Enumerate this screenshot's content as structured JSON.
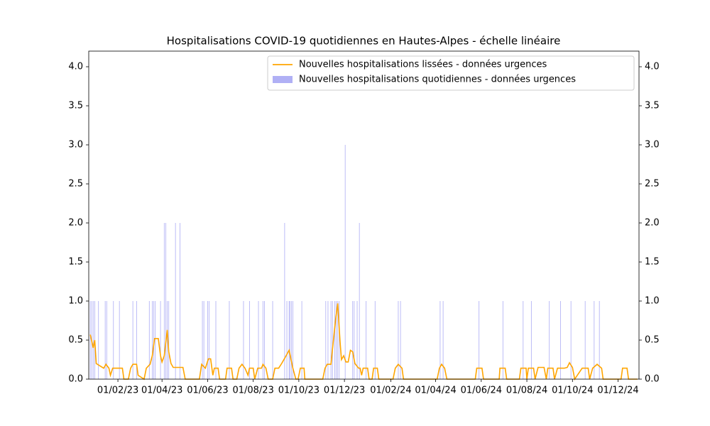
{
  "chart_data": {
    "type": "bar",
    "title": "Hospitalisations COVID-19 quotidiennes en Hautes-Alpes - échelle linéaire",
    "xlim": [
      "2022-12-24",
      "2024-12-29"
    ],
    "xticks": [
      {
        "value": "2023-02-01",
        "label": "01/02/23"
      },
      {
        "value": "2023-04-01",
        "label": "01/04/23"
      },
      {
        "value": "2023-06-01",
        "label": "01/06/23"
      },
      {
        "value": "2023-08-01",
        "label": "01/08/23"
      },
      {
        "value": "2023-10-01",
        "label": "01/10/23"
      },
      {
        "value": "2023-12-01",
        "label": "01/12/23"
      },
      {
        "value": "2024-02-01",
        "label": "01/02/24"
      },
      {
        "value": "2024-04-01",
        "label": "01/04/24"
      },
      {
        "value": "2024-06-01",
        "label": "01/06/24"
      },
      {
        "value": "2024-08-01",
        "label": "01/08/24"
      },
      {
        "value": "2024-10-01",
        "label": "01/10/24"
      },
      {
        "value": "2024-12-01",
        "label": "01/12/24"
      }
    ],
    "ylim": [
      0,
      4.2
    ],
    "yticks": [
      {
        "value": 0,
        "label": "0.0"
      },
      0.5,
      {
        "value": 1,
        "label": "1.0"
      },
      1.5,
      {
        "value": 2,
        "label": "2.0"
      },
      2.5,
      {
        "value": 3,
        "label": "3.0"
      },
      3.5,
      {
        "value": 4,
        "label": "4.0"
      }
    ],
    "y2lim": [
      0,
      4.2
    ],
    "y2ticks": [
      {
        "value": 0,
        "label": "0.0"
      },
      0.5,
      {
        "value": 1,
        "label": "1.0"
      },
      1.5,
      {
        "value": 2,
        "label": "2.0"
      },
      2.5,
      {
        "value": 3,
        "label": "3.0"
      },
      3.5,
      {
        "value": 4,
        "label": "4.0"
      }
    ],
    "legend": "upper right",
    "series": [
      {
        "name": "Nouvelles hospitalisations lissées - données urgences",
        "type": "line",
        "color": "#ffa500",
        "x": [
          "2022-12-26",
          "2022-12-30",
          "2023-01-01",
          "2023-01-03",
          "2023-01-13",
          "2023-01-16",
          "2023-01-20",
          "2023-01-22",
          "2023-01-25",
          "2023-02-07",
          "2023-02-09",
          "2023-02-15",
          "2023-02-18",
          "2023-02-21",
          "2023-02-26",
          "2023-02-28",
          "2023-03-08",
          "2023-03-11",
          "2023-03-16",
          "2023-03-19",
          "2023-03-22",
          "2023-03-27",
          "2023-03-30",
          "2023-04-01",
          "2023-04-04",
          "2023-04-08",
          "2023-04-10",
          "2023-04-13",
          "2023-04-16",
          "2023-04-29",
          "2023-05-02",
          "2023-05-21",
          "2023-05-24",
          "2023-05-29",
          "2023-06-02",
          "2023-06-05",
          "2023-06-08",
          "2023-06-10",
          "2023-06-15",
          "2023-06-17",
          "2023-06-25",
          "2023-06-27",
          "2023-07-03",
          "2023-07-05",
          "2023-07-10",
          "2023-07-13",
          "2023-07-17",
          "2023-07-21",
          "2023-07-25",
          "2023-07-27",
          "2023-08-01",
          "2023-08-03",
          "2023-08-07",
          "2023-08-12",
          "2023-08-14",
          "2023-08-18",
          "2023-08-21",
          "2023-08-27",
          "2023-08-30",
          "2023-09-04",
          "2023-09-08",
          "2023-09-14",
          "2023-09-18",
          "2023-09-20",
          "2023-09-23",
          "2023-09-27",
          "2023-09-30",
          "2023-10-03",
          "2023-10-08",
          "2023-10-09",
          "2023-11-02",
          "2023-11-05",
          "2023-11-08",
          "2023-11-13",
          "2023-11-15",
          "2023-11-19",
          "2023-11-22",
          "2023-11-25",
          "2023-11-27",
          "2023-11-30",
          "2023-12-03",
          "2023-12-06",
          "2023-12-09",
          "2023-12-12",
          "2023-12-15",
          "2023-12-20",
          "2023-12-22",
          "2023-12-24",
          "2023-12-26",
          "2024-01-01",
          "2024-01-03",
          "2024-01-07",
          "2024-01-09",
          "2024-01-14",
          "2024-01-16",
          "2024-02-04",
          "2024-02-07",
          "2024-02-11",
          "2024-02-16",
          "2024-02-18",
          "2024-04-03",
          "2024-04-06",
          "2024-04-09",
          "2024-04-13",
          "2024-04-16",
          "2024-05-24",
          "2024-05-26",
          "2024-06-02",
          "2024-06-04",
          "2024-06-25",
          "2024-06-26",
          "2024-07-03",
          "2024-07-05",
          "2024-07-22",
          "2024-07-24",
          "2024-07-31",
          "2024-08-01",
          "2024-08-03",
          "2024-08-10",
          "2024-08-12",
          "2024-08-16",
          "2024-08-24",
          "2024-08-27",
          "2024-08-29",
          "2024-09-05",
          "2024-09-07",
          "2024-09-11",
          "2024-09-20",
          "2024-09-24",
          "2024-09-27",
          "2024-10-01",
          "2024-10-04",
          "2024-10-14",
          "2024-10-22",
          "2024-10-24",
          "2024-10-28",
          "2024-11-03",
          "2024-11-09",
          "2024-11-11",
          "2024-12-05",
          "2024-12-07",
          "2024-12-13",
          "2024-12-15",
          "2024-12-27"
        ],
        "values": [
          0.57,
          0.4,
          0.5,
          0.2,
          0.14,
          0.19,
          0.14,
          0.05,
          0.14,
          0.14,
          0,
          0,
          0.14,
          0.19,
          0.19,
          0.05,
          0,
          0.14,
          0.19,
          0.3,
          0.52,
          0.52,
          0.3,
          0.22,
          0.3,
          0.63,
          0.35,
          0.2,
          0.15,
          0.15,
          0,
          0,
          0.19,
          0.14,
          0.26,
          0.26,
          0.05,
          0.14,
          0.14,
          0,
          0,
          0.14,
          0.14,
          0,
          0,
          0.14,
          0.19,
          0.14,
          0.05,
          0.14,
          0.14,
          0,
          0.14,
          0.14,
          0.19,
          0.14,
          0,
          0,
          0.14,
          0.14,
          0.2,
          0.3,
          0.37,
          0.28,
          0.14,
          0,
          0,
          0.14,
          0.14,
          0,
          0,
          0.14,
          0.19,
          0.19,
          0.38,
          0.75,
          0.97,
          0.5,
          0.25,
          0.3,
          0.22,
          0.22,
          0.37,
          0.35,
          0.2,
          0.14,
          0.14,
          0.05,
          0.14,
          0.14,
          0,
          0,
          0.14,
          0.14,
          0,
          0,
          0.14,
          0.19,
          0.14,
          0,
          0,
          0.14,
          0.19,
          0.14,
          0,
          0,
          0.14,
          0.14,
          0,
          0,
          0.14,
          0.14,
          0,
          0,
          0.14,
          0.14,
          0,
          0.14,
          0.14,
          0,
          0.15,
          0.15,
          0,
          0.14,
          0.14,
          0,
          0.14,
          0.14,
          0.15,
          0.21,
          0.15,
          0,
          0.14,
          0.14,
          0,
          0.14,
          0.19,
          0.14,
          0,
          0,
          0.14,
          0.14,
          0,
          0
        ]
      },
      {
        "name": "Nouvelles hospitalisations quotidiennes - données urgences",
        "type": "bar",
        "color": "#b0b0f5",
        "x": [
          "2022-12-26",
          "2022-12-28",
          "2022-12-30",
          "2023-01-01",
          "2023-01-06",
          "2023-01-15",
          "2023-01-17",
          "2023-01-26",
          "2023-02-03",
          "2023-02-21",
          "2023-02-26",
          "2023-03-15",
          "2023-03-19",
          "2023-03-21",
          "2023-03-23",
          "2023-03-30",
          "2023-04-04",
          "2023-04-06",
          "2023-04-08",
          "2023-04-10",
          "2023-04-19",
          "2023-04-25",
          "2023-05-25",
          "2023-05-27",
          "2023-06-01",
          "2023-06-03",
          "2023-06-12",
          "2023-06-30",
          "2023-07-19",
          "2023-07-27",
          "2023-08-08",
          "2023-08-14",
          "2023-08-16",
          "2023-08-27",
          "2023-09-12",
          "2023-09-15",
          "2023-09-18",
          "2023-09-19",
          "2023-09-21",
          "2023-09-23",
          "2023-10-05",
          "2023-11-06",
          "2023-11-09",
          "2023-11-13",
          "2023-11-15",
          "2023-11-18",
          "2023-11-20",
          "2023-11-22",
          "2023-11-24",
          "2023-12-02",
          "2023-12-12",
          "2023-12-14",
          "2023-12-18",
          "2023-12-21",
          "2023-12-30",
          "2024-01-11",
          "2024-02-11",
          "2024-02-14",
          "2024-04-07",
          "2024-04-11",
          "2024-05-29",
          "2024-06-30",
          "2024-07-27",
          "2024-08-07",
          "2024-08-31",
          "2024-09-15",
          "2024-09-29",
          "2024-10-18",
          "2024-10-30",
          "2024-11-06"
        ],
        "values": [
          1,
          1,
          1,
          1,
          1,
          1,
          1,
          1,
          1,
          1,
          1,
          1,
          1,
          1,
          1,
          1,
          2,
          2,
          1,
          1,
          2,
          2,
          1,
          1,
          1,
          1,
          1,
          1,
          1,
          1,
          1,
          1,
          1,
          1,
          2,
          1,
          1,
          1,
          1,
          1,
          1,
          1,
          1,
          1,
          1,
          1,
          1,
          1,
          1,
          3,
          1,
          1,
          1,
          2,
          1,
          1,
          1,
          1,
          1,
          1,
          1,
          1,
          1,
          1,
          1,
          1,
          1,
          1,
          1,
          1
        ]
      }
    ]
  }
}
